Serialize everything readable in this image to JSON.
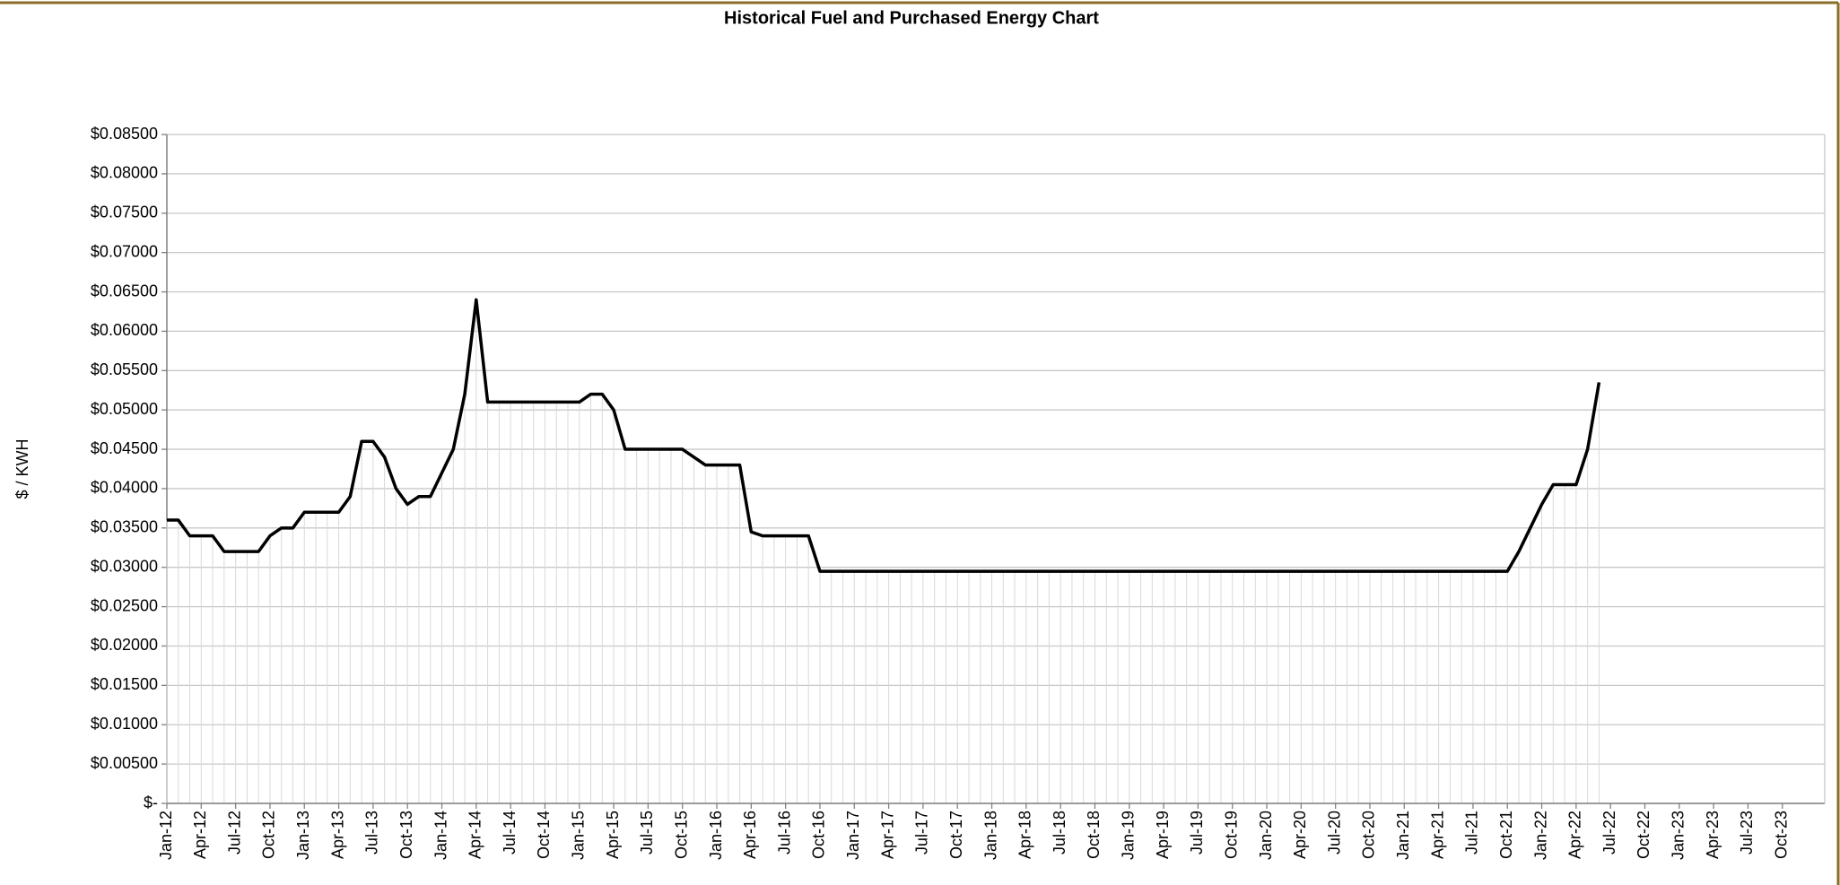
{
  "chart_data": {
    "type": "line",
    "title": "Historical Fuel and  Purchased Energy Chart",
    "y_label": "$ / KWH",
    "categories": [
      "Jan-12",
      null,
      null,
      "Apr-12",
      null,
      null,
      "Jul-12",
      null,
      null,
      "Oct-12",
      null,
      null,
      "Jan-13",
      null,
      null,
      "Apr-13",
      null,
      null,
      "Jul-13",
      null,
      null,
      "Oct-13",
      null,
      null,
      "Jan-14",
      null,
      null,
      "Apr-14",
      null,
      null,
      "Jul-14",
      null,
      null,
      "Oct-14",
      null,
      null,
      "Jan-15",
      null,
      null,
      "Apr-15",
      null,
      null,
      "Jul-15",
      null,
      null,
      "Oct-15",
      null,
      null,
      "Jan-16",
      null,
      null,
      "Apr-16",
      null,
      null,
      "Jul-16",
      null,
      null,
      "Oct-16",
      null,
      null,
      "Jan-17",
      null,
      null,
      "Apr-17",
      null,
      null,
      "Jul-17",
      null,
      null,
      "Oct-17",
      null,
      null,
      "Jan-18",
      null,
      null,
      "Apr-18",
      null,
      null,
      "Jul-18",
      null,
      null,
      "Oct-18",
      null,
      null,
      "Jan-19",
      null,
      null,
      "Apr-19",
      null,
      null,
      "Jul-19",
      null,
      null,
      "Oct-19",
      null,
      null,
      "Jan-20",
      null,
      null,
      "Apr-20",
      null,
      null,
      "Jul-20",
      null,
      null,
      "Oct-20",
      null,
      null,
      "Jan-21",
      null,
      null,
      "Apr-21",
      null,
      null,
      "Jul-21",
      null,
      null,
      "Oct-21",
      null,
      null,
      "Jan-22",
      null,
      null,
      "Apr-22",
      null,
      null,
      "Jul-22",
      null,
      null,
      "Oct-22",
      null,
      null,
      "Jan-23",
      null,
      null,
      "Apr-23",
      null,
      null,
      "Jul-23",
      null,
      null,
      "Oct-23",
      null,
      null
    ],
    "values": [
      0.036,
      0.036,
      0.034,
      0.034,
      0.034,
      0.032,
      0.032,
      0.032,
      0.032,
      0.034,
      0.035,
      0.035,
      0.037,
      0.037,
      0.037,
      0.037,
      0.039,
      0.046,
      0.046,
      0.044,
      0.04,
      0.038,
      0.039,
      0.039,
      0.042,
      0.045,
      0.052,
      0.064,
      0.051,
      0.051,
      0.051,
      0.051,
      0.051,
      0.051,
      0.051,
      0.051,
      0.051,
      0.052,
      0.052,
      0.05,
      0.045,
      0.045,
      0.045,
      0.045,
      0.045,
      0.045,
      0.044,
      0.043,
      0.043,
      0.043,
      0.043,
      0.0345,
      0.034,
      0.034,
      0.034,
      0.034,
      0.034,
      0.0295,
      0.0295,
      0.0295,
      0.0295,
      0.0295,
      0.0295,
      0.0295,
      0.0295,
      0.0295,
      0.0295,
      0.0295,
      0.0295,
      0.0295,
      0.0295,
      0.0295,
      0.0295,
      0.0295,
      0.0295,
      0.0295,
      0.0295,
      0.0295,
      0.0295,
      0.0295,
      0.0295,
      0.0295,
      0.0295,
      0.0295,
      0.0295,
      0.0295,
      0.0295,
      0.0295,
      0.0295,
      0.0295,
      0.0295,
      0.0295,
      0.0295,
      0.0295,
      0.0295,
      0.0295,
      0.0295,
      0.0295,
      0.0295,
      0.0295,
      0.0295,
      0.0295,
      0.0295,
      0.0295,
      0.0295,
      0.0295,
      0.0295,
      0.0295,
      0.0295,
      0.0295,
      0.0295,
      0.0295,
      0.0295,
      0.0295,
      0.0295,
      0.0295,
      0.0295,
      0.0295,
      0.032,
      0.035,
      0.038,
      0.0405,
      0.0405,
      0.0405,
      0.045,
      0.0535,
      null,
      null,
      null,
      null,
      null,
      null,
      null,
      null,
      null,
      null,
      null,
      null,
      null,
      null,
      null,
      null,
      null,
      null
    ],
    "color": "#000000",
    "ylim": [
      0,
      0.085
    ],
    "yticks": [
      {
        "value": 0,
        "label": "$-"
      },
      {
        "value": 0.005,
        "label": "$0.00500"
      },
      {
        "value": 0.01,
        "label": "$0.01000"
      },
      {
        "value": 0.015,
        "label": "$0.01500"
      },
      {
        "value": 0.02,
        "label": "$0.02000"
      },
      {
        "value": 0.025,
        "label": "$0.02500"
      },
      {
        "value": 0.03,
        "label": "$0.03000"
      },
      {
        "value": 0.035,
        "label": "$0.03500"
      },
      {
        "value": 0.04,
        "label": "$0.04000"
      },
      {
        "value": 0.045,
        "label": "$0.04500"
      },
      {
        "value": 0.05,
        "label": "$0.05000"
      },
      {
        "value": 0.055,
        "label": "$0.05500"
      },
      {
        "value": 0.06,
        "label": "$0.06000"
      },
      {
        "value": 0.065,
        "label": "$0.06500"
      },
      {
        "value": 0.07,
        "label": "$0.07000"
      },
      {
        "value": 0.075,
        "label": "$0.07500"
      },
      {
        "value": 0.08,
        "label": "$0.08000"
      },
      {
        "value": 0.085,
        "label": "$0.08500"
      }
    ],
    "grid": true
  }
}
